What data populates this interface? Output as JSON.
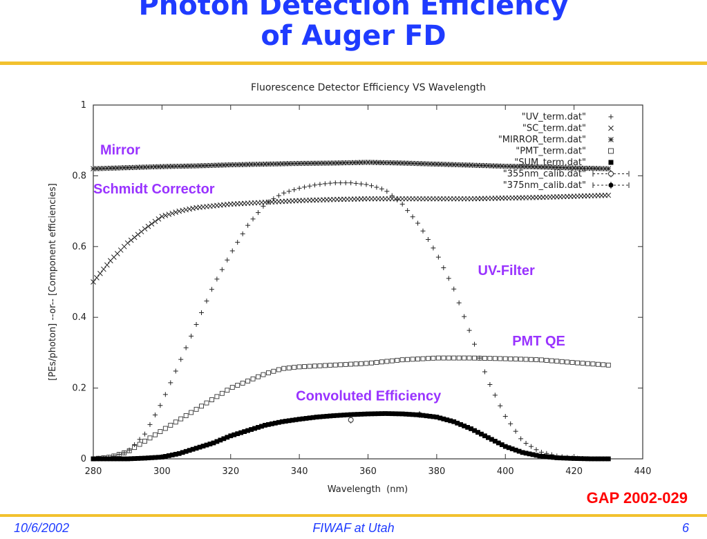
{
  "slide": {
    "title_line1": "Photon Detection Efficiency",
    "title_line2": "of Auger FD",
    "footer_date": "10/6/2002",
    "footer_center": "FIWAF at Utah",
    "footer_page": "6",
    "reference": "GAP 2002-029",
    "colors": {
      "title": "#1f3bff",
      "rule": "#f2c12e",
      "reference": "#ff0000",
      "annotation": "#9933ff"
    }
  },
  "chart_data": {
    "type": "scatter",
    "title": "Fluorescence Detector Efficiency VS Wavelength",
    "xlabel": "Wavelength  (nm)",
    "ylabel": "[PEs/photon] --or-- [Component efficiencies]",
    "xlim": [
      280,
      440
    ],
    "ylim": [
      0,
      1
    ],
    "x_ticks": [
      280,
      300,
      320,
      340,
      360,
      380,
      400,
      420,
      440
    ],
    "y_ticks": [
      0,
      0.2,
      0.4,
      0.6,
      0.8,
      1
    ],
    "y_tick_labels": [
      "0",
      "0.2",
      "0.4",
      "0.6",
      "0.8",
      "1"
    ],
    "grid": false,
    "legend_position": "top-right",
    "series": [
      {
        "name": "\"UV_term.dat\"",
        "marker": "plus",
        "x": [
          280,
          285,
          290,
          295,
          300,
          305,
          310,
          315,
          320,
          325,
          330,
          335,
          340,
          345,
          350,
          355,
          360,
          365,
          370,
          375,
          380,
          385,
          390,
          395,
          400,
          405,
          410,
          415,
          420,
          425,
          430
        ],
        "y": [
          0.0,
          0.005,
          0.02,
          0.07,
          0.16,
          0.27,
          0.38,
          0.49,
          0.58,
          0.66,
          0.72,
          0.75,
          0.765,
          0.775,
          0.78,
          0.78,
          0.775,
          0.76,
          0.72,
          0.66,
          0.58,
          0.48,
          0.35,
          0.22,
          0.12,
          0.05,
          0.02,
          0.008,
          0.002,
          0.0,
          0.0
        ]
      },
      {
        "name": "\"SC_term.dat\"",
        "marker": "cross",
        "x": [
          280,
          285,
          290,
          295,
          300,
          305,
          310,
          320,
          330,
          340,
          350,
          360,
          370,
          380,
          390,
          400,
          410,
          420,
          430
        ],
        "y": [
          0.5,
          0.56,
          0.61,
          0.65,
          0.685,
          0.7,
          0.71,
          0.72,
          0.725,
          0.73,
          0.733,
          0.735,
          0.735,
          0.735,
          0.735,
          0.737,
          0.739,
          0.742,
          0.745
        ]
      },
      {
        "name": "\"MIRROR_term.dat\"",
        "marker": "star",
        "x": [
          280,
          290,
          300,
          310,
          320,
          330,
          340,
          350,
          360,
          370,
          380,
          390,
          400,
          410,
          420,
          430
        ],
        "y": [
          0.82,
          0.823,
          0.826,
          0.828,
          0.831,
          0.833,
          0.835,
          0.836,
          0.838,
          0.836,
          0.833,
          0.83,
          0.827,
          0.825,
          0.822,
          0.82
        ]
      },
      {
        "name": "\"PMT_term.dat\"",
        "marker": "square",
        "x": [
          280,
          285,
          290,
          295,
          300,
          305,
          310,
          315,
          320,
          325,
          330,
          335,
          340,
          350,
          360,
          370,
          380,
          390,
          400,
          410,
          420,
          430
        ],
        "y": [
          0.0,
          0.005,
          0.02,
          0.05,
          0.08,
          0.11,
          0.14,
          0.17,
          0.2,
          0.22,
          0.24,
          0.255,
          0.26,
          0.265,
          0.27,
          0.28,
          0.285,
          0.285,
          0.283,
          0.28,
          0.272,
          0.265
        ]
      },
      {
        "name": "\"SUM_term.dat\"",
        "marker": "filled-square",
        "x": [
          280,
          285,
          290,
          295,
          300,
          305,
          310,
          315,
          320,
          325,
          330,
          335,
          340,
          345,
          350,
          355,
          360,
          365,
          370,
          375,
          380,
          385,
          390,
          395,
          400,
          405,
          410,
          415,
          420,
          425,
          430
        ],
        "y": [
          0.0,
          0.0,
          0.0,
          0.002,
          0.005,
          0.015,
          0.03,
          0.045,
          0.065,
          0.08,
          0.095,
          0.105,
          0.112,
          0.118,
          0.122,
          0.125,
          0.127,
          0.128,
          0.127,
          0.124,
          0.118,
          0.105,
          0.085,
          0.06,
          0.035,
          0.018,
          0.008,
          0.003,
          0.001,
          0.0,
          0.0
        ]
      },
      {
        "name": "\"355nm_calib.dat\"",
        "marker": "circle-errorbar",
        "x": [
          355
        ],
        "y": [
          0.11
        ]
      },
      {
        "name": "\"375nm_calib.dat\"",
        "marker": "filled-circle-errorbar",
        "x": [
          375
        ],
        "y": [
          0.125
        ]
      }
    ],
    "annotations": [
      {
        "text": "Mirror",
        "x": 282,
        "y": 0.86
      },
      {
        "text": "Schmidt Corrector",
        "x": 280,
        "y": 0.75
      },
      {
        "text": "UV-Filter",
        "x": 392,
        "y": 0.52
      },
      {
        "text": "PMT QE",
        "x": 402,
        "y": 0.32
      },
      {
        "text": "Convoluted Efficiency",
        "x": 339,
        "y": 0.165
      }
    ]
  }
}
